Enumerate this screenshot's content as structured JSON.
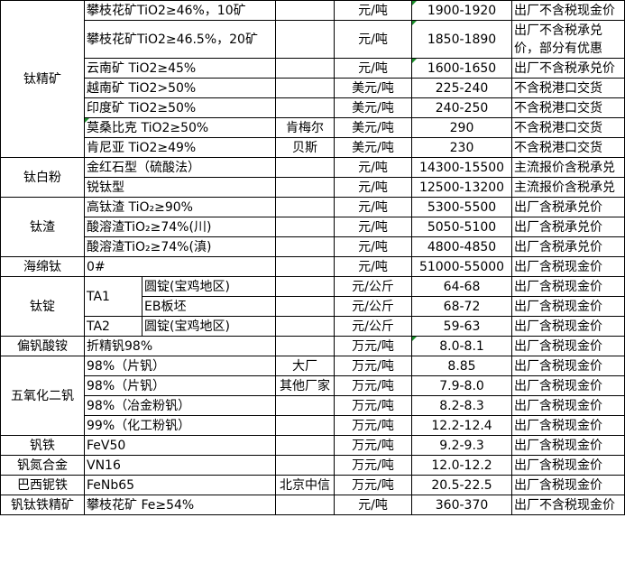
{
  "groups": [
    {
      "category": "钛精矿",
      "rows": [
        {
          "spec": "攀枝花矿TiO2≥46%，10矿",
          "maker": "",
          "unit": "元/吨",
          "price": "1900-1920",
          "note": "出厂不含税现金价",
          "flag": true
        },
        {
          "spec": "攀枝花矿TiO2≥46.5%，20矿",
          "maker": "",
          "unit": "元/吨",
          "price": "1850-1890",
          "note": "出厂不含税承兑价，部分有优惠",
          "flag": true,
          "tall": true
        },
        {
          "spec": "云南矿 TiO2≥45%",
          "maker": "",
          "unit": "元/吨",
          "price": "1600-1650",
          "note": "出厂不含税承兑价",
          "flag": true
        },
        {
          "spec": "越南矿 TiO2>50%",
          "maker": "",
          "unit": "美元/吨",
          "price": "225-240",
          "note": "不含税港口交货"
        },
        {
          "spec": "印度矿 TiO2≥50%",
          "maker": "",
          "unit": "美元/吨",
          "price": "240-250",
          "note": "不含税港口交货"
        },
        {
          "spec": "莫桑比克 TiO2≥50%",
          "maker": "肯梅尔",
          "unit": "美元/吨",
          "price": "290",
          "note": "不含税港口交货",
          "specflag": true
        },
        {
          "spec": "肯尼亚 TiO2≥49%",
          "maker": "贝斯",
          "unit": "美元/吨",
          "price": "230",
          "note": "不含税港口交货"
        }
      ]
    },
    {
      "category": "钛白粉",
      "rows": [
        {
          "spec": "金红石型（硫酸法）",
          "maker": "",
          "unit": "元/吨",
          "price": "14300-15500",
          "note": "主流报价含税承兑"
        },
        {
          "spec": "锐钛型",
          "maker": "",
          "unit": "元/吨",
          "price": "12500-13200",
          "note": "主流报价含税承兑"
        }
      ]
    },
    {
      "category": "钛渣",
      "rows": [
        {
          "spec": "高钛渣 TiO₂≥90%",
          "maker": "",
          "unit": "元/吨",
          "price": "5300-5500",
          "note": "出厂含税承兑价"
        },
        {
          "spec": "酸溶渣TiO₂≥74%(川)",
          "maker": "",
          "unit": "元/吨",
          "price": "5050-5100",
          "note": "出厂含税承兑价"
        },
        {
          "spec": "酸溶渣TiO₂≥74%(滇)",
          "maker": "",
          "unit": "元/吨",
          "price": "4800-4850",
          "note": "出厂含税承兑价"
        }
      ]
    },
    {
      "category": "海绵钛",
      "rows": [
        {
          "spec": "0#",
          "maker": "",
          "unit": "元/吨",
          "price": "51000-55000",
          "note": "出厂含税现金价"
        }
      ]
    },
    {
      "category": "钛锭",
      "rows": [
        {
          "grade": "TA1",
          "spec": "圆锭(宝鸡地区)",
          "unit": "元/公斤",
          "price": "64-68",
          "note": "出厂含税现金价"
        },
        {
          "spec": "EB板坯",
          "unit": "元/公斤",
          "price": "68-72",
          "note": "出厂含税现金价"
        },
        {
          "grade": "TA2",
          "spec": "圆锭(宝鸡地区)",
          "unit": "元/公斤",
          "price": "59-63",
          "note": "出厂含税现金价"
        }
      ]
    },
    {
      "category": "偏钒酸铵",
      "rows": [
        {
          "spec": "折精钒98%",
          "maker": "",
          "unit": "万元/吨",
          "price": "8.0-8.1",
          "note": "出厂含税现金价",
          "flag": true
        }
      ]
    },
    {
      "category": "五氧化二钒",
      "rows": [
        {
          "spec": "98%（片钒）",
          "maker": "大厂",
          "unit": "万元/吨",
          "price": "8.85",
          "note": "出厂含税现金价"
        },
        {
          "spec": "98%（片钒）",
          "maker": "其他厂家",
          "unit": "万元/吨",
          "price": "7.9-8.0",
          "note": "出厂含税现金价"
        },
        {
          "spec": "98%（冶金粉钒）",
          "maker": "",
          "unit": "万元/吨",
          "price": "8.2-8.3",
          "note": "出厂含税现金价"
        },
        {
          "spec": "99%（化工粉钒）",
          "maker": "",
          "unit": "万元/吨",
          "price": "12.2-12.4",
          "note": "出厂含税现金价"
        }
      ]
    },
    {
      "category": "钒铁",
      "rows": [
        {
          "spec": "FeV50",
          "maker": "",
          "unit": "万元/吨",
          "price": "9.2-9.3",
          "note": "出厂含税现金价"
        }
      ]
    },
    {
      "category": "钒氮合金",
      "rows": [
        {
          "spec": "VN16",
          "maker": "",
          "unit": "万元/吨",
          "price": "12.0-12.2",
          "note": "出厂含税现金价"
        }
      ]
    },
    {
      "category": "巴西铌铁",
      "rows": [
        {
          "spec": "FeNb65",
          "maker": "北京中信",
          "unit": "万元/吨",
          "price": "20.5-22.5",
          "note": "出厂含税现金价"
        }
      ]
    },
    {
      "category": "钒钛铁精矿",
      "rows": [
        {
          "spec": "攀枝花矿 Fe≥54%",
          "maker": "",
          "unit": "元/吨",
          "price": "360-370",
          "note": "出厂不含税现金价"
        }
      ]
    }
  ],
  "colors": {
    "border": "#000000",
    "comment_mark": "#1a8f2a"
  }
}
